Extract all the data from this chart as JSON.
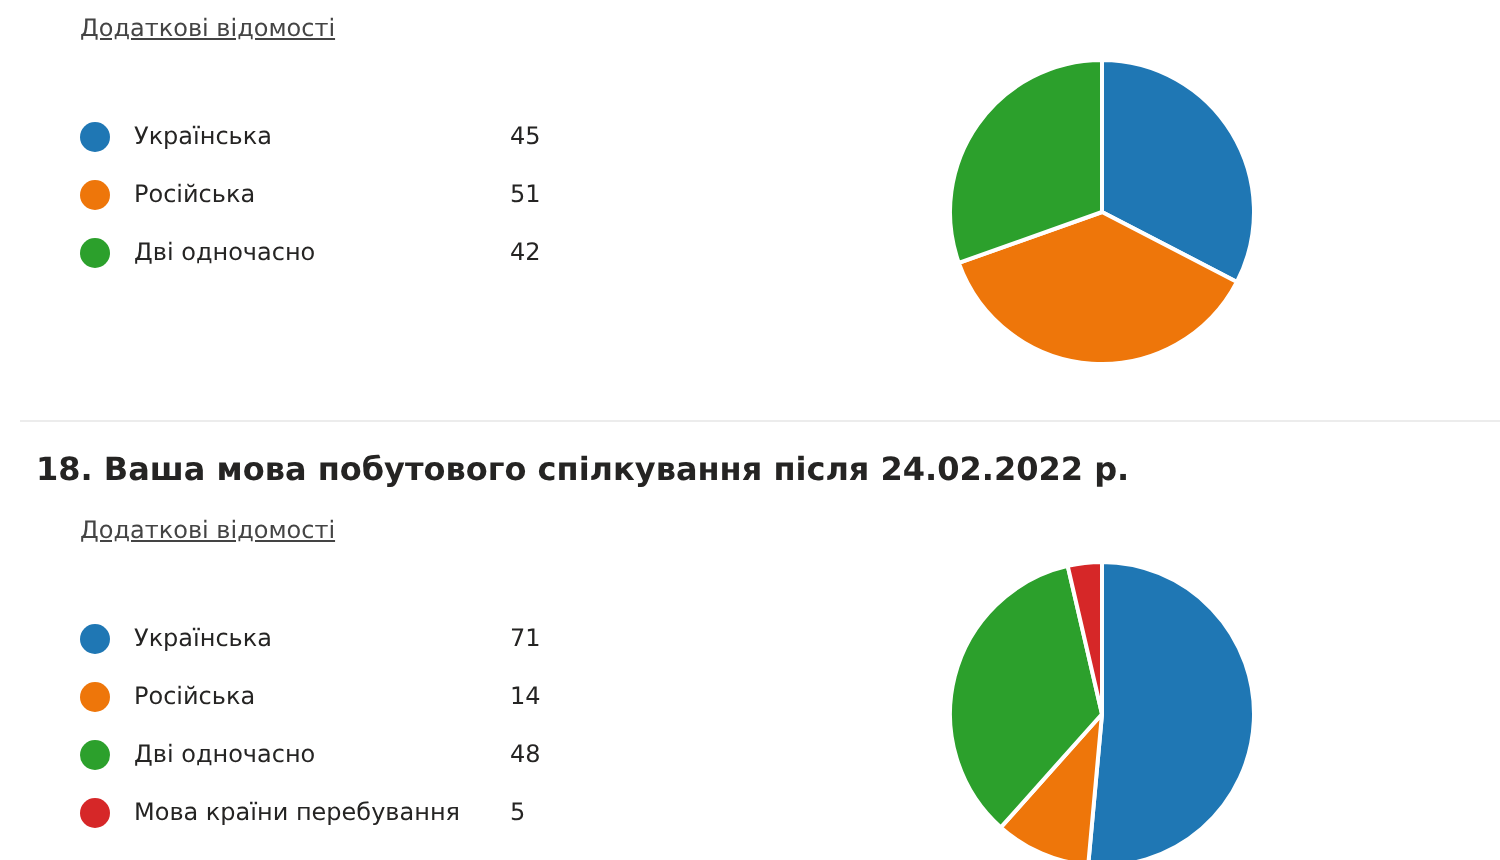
{
  "chart_data": [
    {
      "type": "pie",
      "annotations": [
        "Додаткові відомості"
      ],
      "categories": [
        "Українська",
        "Російська",
        "Дві одночасно"
      ],
      "values": [
        45,
        51,
        42
      ],
      "colors": [
        "#1f77b4",
        "#ee760a",
        "#2ca02c"
      ],
      "legend": "left",
      "data_labels": true
    },
    {
      "type": "pie",
      "title": "18. Ваша мова побутового спілкування після 24.02.2022 р.",
      "annotations": [
        "Додаткові відомості"
      ],
      "categories": [
        "Українська",
        "Російська",
        "Дві одночасно",
        "Мова країни перебування"
      ],
      "values": [
        71,
        14,
        48,
        5
      ],
      "colors": [
        "#1f77b4",
        "#ee760a",
        "#2ca02c",
        "#d62728"
      ],
      "legend": "left",
      "data_labels": true
    }
  ]
}
